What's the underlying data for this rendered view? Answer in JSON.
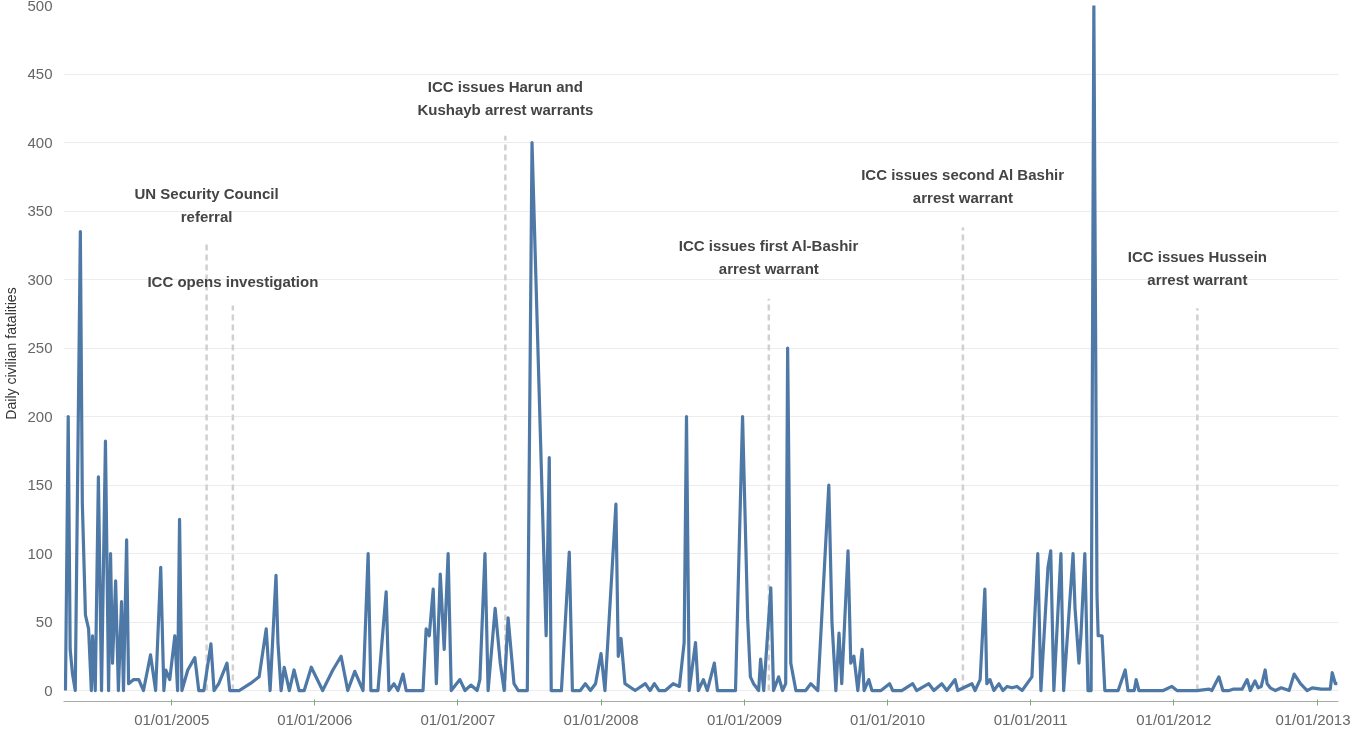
{
  "chart_data": {
    "type": "line",
    "ylabel": "Daily civilian fatalities",
    "xlim": [
      "2004-03-31",
      "2013-02-24"
    ],
    "ylim": [
      -8,
      500
    ],
    "xticks": [
      {
        "value": "2005-01-01",
        "label": "01/01/2005"
      },
      {
        "value": "2006-01-01",
        "label": "01/01/2006"
      },
      {
        "value": "2007-01-01",
        "label": "01/01/2007"
      },
      {
        "value": "2008-01-01",
        "label": "01/01/2008"
      },
      {
        "value": "2009-01-01",
        "label": "01/01/2009"
      },
      {
        "value": "2010-01-01",
        "label": "01/01/2010"
      },
      {
        "value": "2011-01-01",
        "label": "01/01/2011"
      },
      {
        "value": "2012-01-01",
        "label": "01/01/2012"
      },
      {
        "value": "2013-01-01",
        "label": "01/01/2013"
      }
    ],
    "yticks": [
      0,
      50,
      100,
      150,
      200,
      250,
      300,
      350,
      400,
      450,
      500
    ],
    "grid": "y",
    "marker": "none",
    "line_style": "solid",
    "x": [
      "2004-04-05",
      "2004-04-12",
      "2004-04-17",
      "2004-04-23",
      "2004-04-30",
      "2004-05-13",
      "2004-05-18",
      "2004-05-26",
      "2004-06-03",
      "2004-06-10",
      "2004-06-13",
      "2004-06-20",
      "2004-06-28",
      "2004-07-06",
      "2004-07-16",
      "2004-07-24",
      "2004-07-29",
      "2004-08-03",
      "2004-08-11",
      "2004-08-18",
      "2004-08-26",
      "2004-08-31",
      "2004-09-08",
      "2004-09-13",
      "2004-09-26",
      "2004-10-09",
      "2004-10-21",
      "2004-11-08",
      "2004-11-21",
      "2004-12-04",
      "2004-12-12",
      "2004-12-17",
      "2004-12-27",
      "2005-01-09",
      "2005-01-16",
      "2005-01-21",
      "2005-01-27",
      "2005-02-11",
      "2005-03-01",
      "2005-03-11",
      "2005-03-24",
      "2005-04-11",
      "2005-04-19",
      "2005-05-01",
      "2005-05-22",
      "2005-05-29",
      "2005-06-22",
      "2005-07-09",
      "2005-07-25",
      "2005-08-12",
      "2005-08-30",
      "2005-09-09",
      "2005-09-24",
      "2005-09-29",
      "2005-10-07",
      "2005-10-15",
      "2005-10-28",
      "2005-11-09",
      "2005-11-22",
      "2005-12-05",
      "2005-12-23",
      "2006-01-21",
      "2006-02-16",
      "2006-03-09",
      "2006-03-26",
      "2006-04-13",
      "2006-05-04",
      "2006-05-17",
      "2006-05-24",
      "2006-06-11",
      "2006-07-02",
      "2006-07-09",
      "2006-07-22",
      "2006-08-01",
      "2006-08-14",
      "2006-08-22",
      "2006-10-04",
      "2006-10-12",
      "2006-10-20",
      "2006-10-30",
      "2006-11-07",
      "2006-11-17",
      "2006-11-27",
      "2006-12-07",
      "2006-12-15",
      "2007-01-06",
      "2007-01-19",
      "2007-02-03",
      "2007-02-19",
      "2007-02-26",
      "2007-03-11",
      "2007-03-19",
      "2007-04-06",
      "2007-04-19",
      "2007-04-29",
      "2007-05-09",
      "2007-05-24",
      "2007-06-04",
      "2007-06-27",
      "2007-07-09",
      "2007-08-14",
      "2007-08-22",
      "2007-08-27",
      "2007-09-11",
      "2007-09-22",
      "2007-10-12",
      "2007-10-20",
      "2007-11-09",
      "2007-11-22",
      "2007-12-05",
      "2007-12-18",
      "2008-01-01",
      "2008-01-11",
      "2008-02-08",
      "2008-02-14",
      "2008-02-21",
      "2008-03-02",
      "2008-03-28",
      "2008-04-23",
      "2008-05-05",
      "2008-05-16",
      "2008-05-28",
      "2008-06-13",
      "2008-07-03",
      "2008-07-19",
      "2008-07-31",
      "2008-08-06",
      "2008-08-13",
      "2008-08-29",
      "2008-09-05",
      "2008-09-18",
      "2008-09-28",
      "2008-10-16",
      "2008-10-24",
      "2008-12-09",
      "2008-12-27",
      "2009-01-09",
      "2009-01-16",
      "2009-01-24",
      "2009-02-06",
      "2009-02-11",
      "2009-02-19",
      "2009-03-09",
      "2009-03-16",
      "2009-03-29",
      "2009-04-08",
      "2009-04-16",
      "2009-04-21",
      "2009-04-29",
      "2009-05-12",
      "2009-06-06",
      "2009-06-19",
      "2009-07-07",
      "2009-08-04",
      "2009-08-12",
      "2009-08-22",
      "2009-08-30",
      "2009-09-06",
      "2009-09-22",
      "2009-09-29",
      "2009-10-07",
      "2009-10-17",
      "2009-10-28",
      "2009-11-02",
      "2009-11-14",
      "2009-11-22",
      "2009-12-15",
      "2010-01-06",
      "2010-01-14",
      "2010-02-06",
      "2010-03-06",
      "2010-03-16",
      "2010-04-16",
      "2010-04-29",
      "2010-05-19",
      "2010-06-01",
      "2010-06-14",
      "2010-06-22",
      "2010-06-29",
      "2010-08-04",
      "2010-08-12",
      "2010-08-25",
      "2010-09-06",
      "2010-09-11",
      "2010-09-19",
      "2010-09-29",
      "2010-10-12",
      "2010-10-22",
      "2010-11-02",
      "2010-11-14",
      "2010-11-27",
      "2010-12-10",
      "2011-01-04",
      "2011-01-19",
      "2011-01-27",
      "2011-02-14",
      "2011-02-21",
      "2011-03-01",
      "2011-03-19",
      "2011-03-26",
      "2011-04-19",
      "2011-04-24",
      "2011-05-04",
      "2011-05-09",
      "2011-05-19",
      "2011-05-27",
      "2011-06-04",
      "2011-06-11",
      "2011-06-19",
      "2011-06-22",
      "2011-07-02",
      "2011-07-09",
      "2011-08-12",
      "2011-08-30",
      "2011-09-06",
      "2011-09-22",
      "2011-09-27",
      "2011-10-04",
      "2011-12-05",
      "2011-12-27",
      "2012-01-09",
      "2012-02-29",
      "2012-03-31",
      "2012-04-07",
      "2012-04-25",
      "2012-05-05",
      "2012-05-21",
      "2012-05-31",
      "2012-06-23",
      "2012-07-06",
      "2012-07-14",
      "2012-07-26",
      "2012-08-03",
      "2012-08-11",
      "2012-08-21",
      "2012-08-26",
      "2012-09-03",
      "2012-09-16",
      "2012-10-01",
      "2012-10-21",
      "2012-11-03",
      "2012-11-19",
      "2012-12-06",
      "2012-12-19",
      "2013-01-11",
      "2013-02-03",
      "2013-02-08",
      "2013-02-16",
      "2013-02-21"
    ],
    "series": [
      {
        "color": "#4e79a7",
        "values": [
          0,
          200,
          30,
          12,
          0,
          335,
          137,
          55,
          45,
          0,
          40,
          0,
          156,
          0,
          182,
          0,
          100,
          20,
          80,
          0,
          65,
          0,
          110,
          5,
          8,
          8,
          0,
          26,
          0,
          90,
          0,
          15,
          8,
          40,
          0,
          125,
          0,
          15,
          24,
          0,
          0,
          34,
          0,
          5,
          20,
          0,
          0,
          3,
          6,
          10,
          45,
          0,
          84,
          35,
          0,
          17,
          0,
          15,
          0,
          0,
          17,
          0,
          15,
          25,
          0,
          14,
          0,
          100,
          0,
          0,
          72,
          0,
          5,
          0,
          12,
          0,
          0,
          45,
          40,
          74,
          5,
          85,
          30,
          100,
          0,
          8,
          0,
          4,
          0,
          8,
          100,
          0,
          60,
          20,
          0,
          53,
          5,
          0,
          0,
          400,
          40,
          170,
          0,
          0,
          0,
          101,
          0,
          0,
          5,
          0,
          5,
          27,
          0,
          136,
          25,
          38,
          5,
          0,
          5,
          0,
          5,
          0,
          0,
          5,
          3,
          35,
          200,
          0,
          35,
          0,
          8,
          0,
          20,
          0,
          0,
          200,
          53,
          10,
          5,
          0,
          23,
          0,
          75,
          0,
          10,
          0,
          5,
          250,
          20,
          0,
          0,
          5,
          0,
          150,
          50,
          0,
          42,
          5,
          102,
          20,
          25,
          0,
          30,
          0,
          8,
          0,
          0,
          5,
          0,
          0,
          5,
          0,
          5,
          0,
          5,
          0,
          5,
          8,
          0,
          5,
          0,
          8,
          74,
          5,
          8,
          0,
          5,
          0,
          3,
          2,
          3,
          0,
          10,
          100,
          0,
          90,
          102,
          0,
          100,
          0,
          100,
          60,
          20,
          40,
          100,
          0,
          0,
          500,
          70,
          40,
          40,
          0,
          0,
          15,
          0,
          0,
          8,
          0,
          0,
          3,
          0,
          0,
          1,
          0,
          10,
          0,
          0,
          1,
          1,
          8,
          0,
          7,
          2,
          3,
          15,
          5,
          2,
          0,
          2,
          0,
          12,
          5,
          0,
          2,
          1,
          1,
          13,
          5,
          5
        ]
      }
    ],
    "ref_lines": [
      {
        "axis": "x",
        "value": "2005-03-31",
        "label": "UN Security Council\nreferral",
        "color": "#d0d0d0",
        "line_style": "dashed"
      },
      {
        "axis": "x",
        "value": "2005-06-06",
        "label": "ICC opens investigation",
        "color": "#d0d0d0",
        "line_style": "dashed"
      },
      {
        "axis": "x",
        "value": "2007-05-02",
        "label": "ICC issues Harun and\nKushayb arrest warrants",
        "color": "#d0d0d0",
        "line_style": "dashed"
      },
      {
        "axis": "x",
        "value": "2009-03-04",
        "label": "ICC issues first Al-Bashir\narrest warrant",
        "color": "#d0d0d0",
        "line_style": "dashed"
      },
      {
        "axis": "x",
        "value": "2010-07-12",
        "label": "ICC issues second Al Bashir\narrest warrant",
        "color": "#d0d0d0",
        "line_style": "dashed"
      },
      {
        "axis": "x",
        "value": "2012-03-01",
        "label": "ICC issues Hussein\narrest warrant",
        "color": "#d0d0d0",
        "line_style": "dashed"
      }
    ]
  }
}
